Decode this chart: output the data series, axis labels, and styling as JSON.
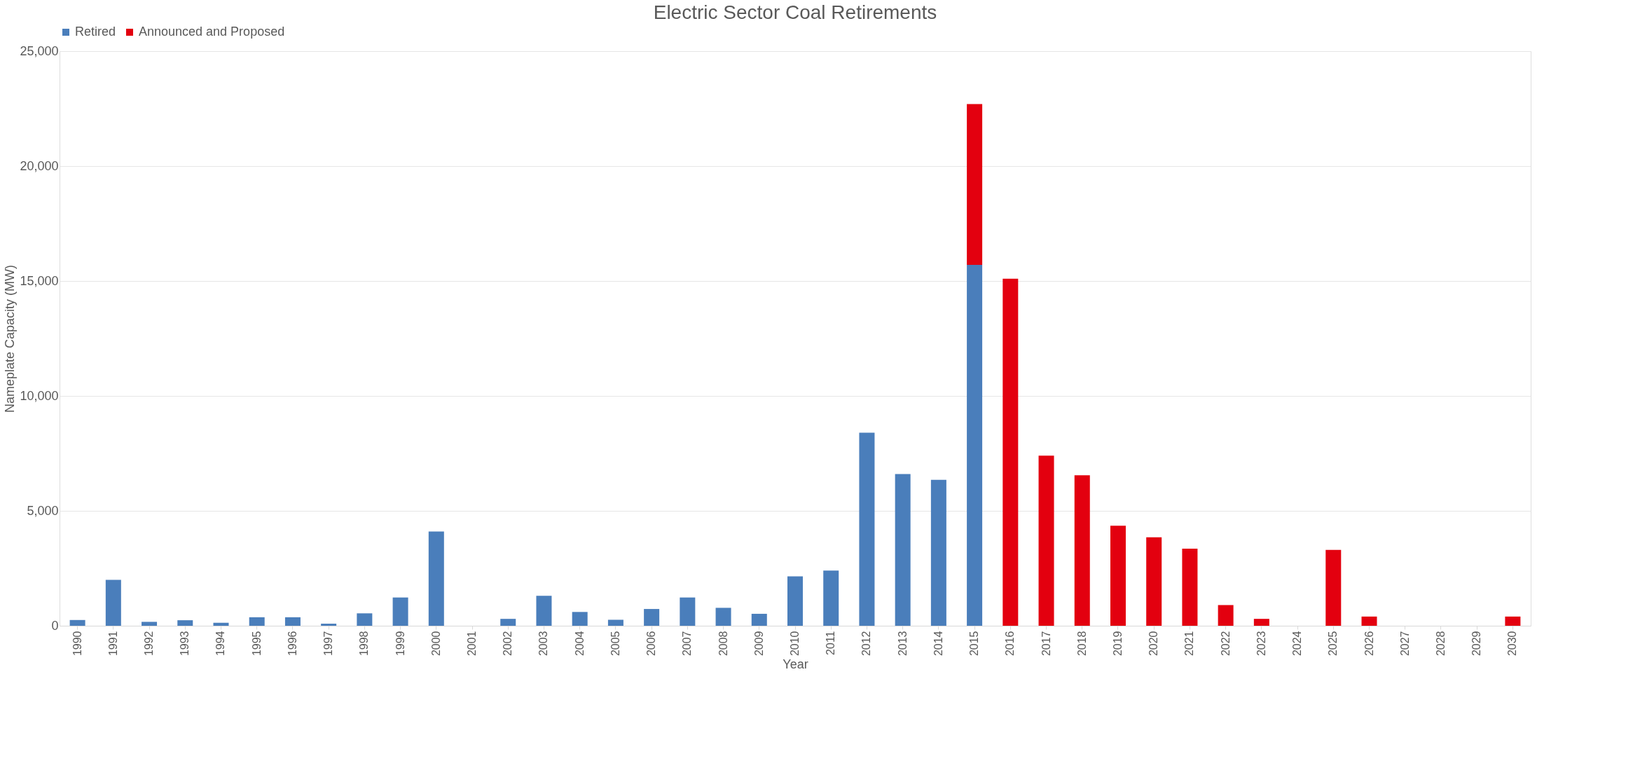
{
  "chart_data": {
    "type": "bar",
    "title": "Electric Sector Coal Retirements",
    "xlabel": "Year",
    "ylabel": "Nameplate Capacity (MW)",
    "categories": [
      "1990",
      "1991",
      "1992",
      "1993",
      "1994",
      "1995",
      "1996",
      "1997",
      "1998",
      "1999",
      "2000",
      "2001",
      "2002",
      "2003",
      "2004",
      "2005",
      "2006",
      "2007",
      "2008",
      "2009",
      "2010",
      "2011",
      "2012",
      "2013",
      "2014",
      "2015",
      "2016",
      "2017",
      "2018",
      "2019",
      "2020",
      "2021",
      "2022",
      "2023",
      "2024",
      "2025",
      "2026",
      "2027",
      "2028",
      "2029",
      "2030"
    ],
    "stacked": true,
    "series": [
      {
        "name": "Retired",
        "color": "#4a7ebb",
        "values": [
          250,
          2000,
          170,
          240,
          130,
          370,
          370,
          90,
          540,
          1230,
          4100,
          0,
          300,
          1300,
          600,
          260,
          730,
          1230,
          780,
          520,
          2150,
          2400,
          8400,
          6600,
          6350,
          15700,
          null,
          null,
          null,
          null,
          null,
          null,
          null,
          null,
          null,
          null,
          null,
          null,
          null,
          null,
          null
        ]
      },
      {
        "name": "Announced and Proposed",
        "color": "#e3000f",
        "values": [
          null,
          null,
          null,
          null,
          null,
          null,
          null,
          null,
          null,
          null,
          null,
          null,
          null,
          null,
          null,
          null,
          null,
          null,
          null,
          null,
          null,
          null,
          null,
          null,
          null,
          7000,
          15100,
          7400,
          6550,
          4350,
          3850,
          3350,
          900,
          300,
          0,
          3300,
          400,
          0,
          0,
          0,
          400
        ]
      }
    ],
    "ylim": [
      0,
      25000
    ],
    "yticks": [
      {
        "value": 0,
        "label": "0"
      },
      {
        "value": 5000,
        "label": "5,000"
      },
      {
        "value": 10000,
        "label": "10,000"
      },
      {
        "value": 15000,
        "label": "15,000"
      },
      {
        "value": 20000,
        "label": "20,000"
      },
      {
        "value": 25000,
        "label": "25,000"
      }
    ],
    "grid": "y",
    "legend": "top"
  }
}
